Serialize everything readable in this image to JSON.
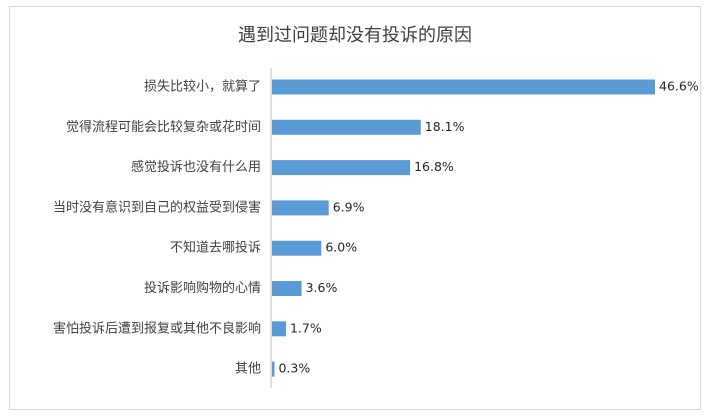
{
  "chart_data": {
    "type": "bar",
    "orientation": "horizontal",
    "title": "遇到过问题却没有投诉的原因",
    "categories": [
      "损失比较小，就算了",
      "觉得流程可能会比较复杂或花时间",
      "感觉投诉也没有什么用",
      "当时没有意识到自己的权益受到侵害",
      "不知道去哪投诉",
      "投诉影响购物的心情",
      "害怕投诉后遭到报复或其他不良影响",
      "其他"
    ],
    "values": [
      46.6,
      18.1,
      16.8,
      6.9,
      6.0,
      3.6,
      1.7,
      0.3
    ],
    "labels": [
      "46.6%",
      "18.1%",
      "16.8%",
      "6.9%",
      "6.0%",
      "3.6%",
      "1.7%",
      "0.3%"
    ],
    "unit": "%",
    "xlim": [
      0,
      46.6
    ],
    "bar_color": "#5b9bd5",
    "grid": false,
    "legend": "none"
  }
}
